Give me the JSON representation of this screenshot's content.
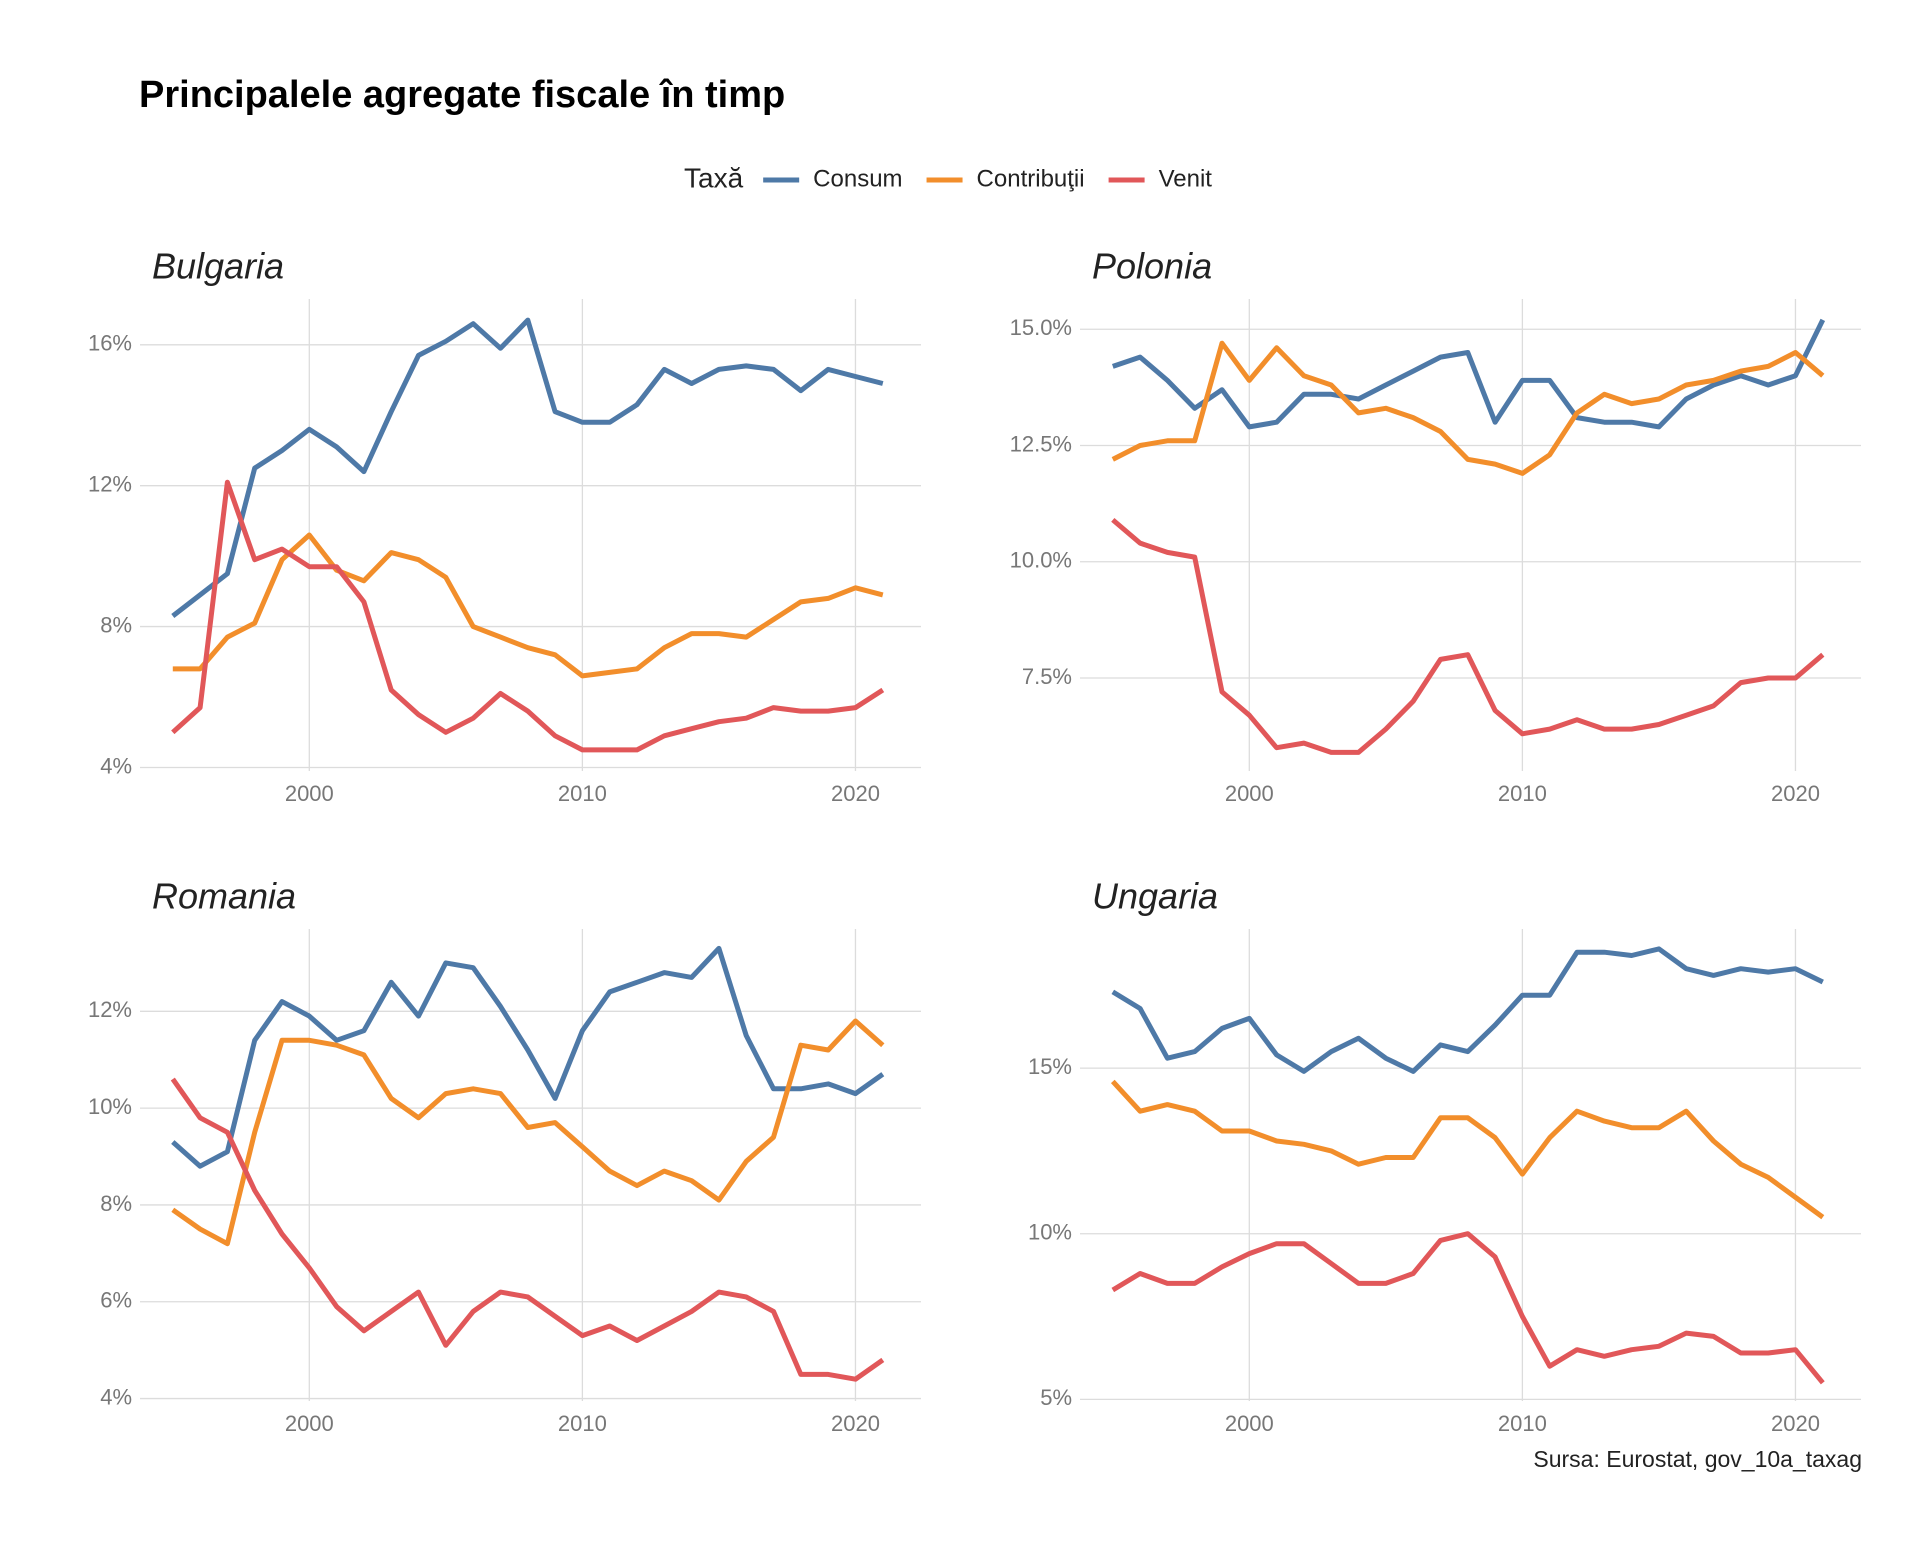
{
  "title": "Principalele agregate fiscale în timp",
  "legend_title": "Taxă",
  "caption": "Sursa: Eurostat, gov_10a_taxag",
  "chart_data": [
    {
      "type": "line",
      "title": "Bulgaria",
      "x": [
        1995,
        1996,
        1997,
        1998,
        1999,
        2000,
        2001,
        2002,
        2003,
        2004,
        2005,
        2006,
        2007,
        2008,
        2009,
        2010,
        2011,
        2012,
        2013,
        2014,
        2015,
        2016,
        2017,
        2018,
        2019,
        2020,
        2021
      ],
      "xlim": [
        1993.8,
        2022.4
      ],
      "xticks": [
        2000,
        2010,
        2020
      ],
      "ylim": [
        3.9,
        17.3
      ],
      "yticks": [
        {
          "value": 4,
          "label": "4%"
        },
        {
          "value": 8,
          "label": "8%"
        },
        {
          "value": 12,
          "label": "12%"
        },
        {
          "value": 16,
          "label": "16%"
        }
      ],
      "grid": true,
      "series": [
        {
          "name": "Consum",
          "color": "#4e79a7",
          "values": [
            8.3,
            8.9,
            9.5,
            12.5,
            13.0,
            13.6,
            13.1,
            12.4,
            14.1,
            15.7,
            16.1,
            16.6,
            15.9,
            16.7,
            14.1,
            13.8,
            13.8,
            14.3,
            15.3,
            14.9,
            15.3,
            15.4,
            15.3,
            14.7,
            15.3,
            15.1,
            14.9
          ]
        },
        {
          "name": "Contribuţii",
          "color": "#f28e2b",
          "values": [
            6.8,
            6.8,
            7.7,
            8.1,
            9.9,
            10.6,
            9.6,
            9.3,
            10.1,
            9.9,
            9.4,
            8.0,
            7.7,
            7.4,
            7.2,
            6.6,
            6.7,
            6.8,
            7.4,
            7.8,
            7.8,
            7.7,
            8.2,
            8.7,
            8.8,
            9.1,
            8.9
          ]
        },
        {
          "name": "Venit",
          "color": "#e15759",
          "values": [
            5.0,
            5.7,
            12.1,
            9.9,
            10.2,
            9.7,
            9.7,
            8.7,
            6.2,
            5.5,
            5.0,
            5.4,
            6.1,
            5.6,
            4.9,
            4.5,
            4.5,
            4.5,
            4.9,
            5.1,
            5.3,
            5.4,
            5.7,
            5.6,
            5.6,
            5.7,
            6.2
          ]
        }
      ]
    },
    {
      "type": "line",
      "title": "Polonia",
      "x": [
        1995,
        1996,
        1997,
        1998,
        1999,
        2000,
        2001,
        2002,
        2003,
        2004,
        2005,
        2006,
        2007,
        2008,
        2009,
        2010,
        2011,
        2012,
        2013,
        2014,
        2015,
        2016,
        2017,
        2018,
        2019,
        2020,
        2021
      ],
      "xlim": [
        1993.8,
        2022.4
      ],
      "xticks": [
        2000,
        2010,
        2020
      ],
      "ylim": [
        5.5,
        15.65
      ],
      "yticks": [
        {
          "value": 7.5,
          "label": "7.5%"
        },
        {
          "value": 10,
          "label": "10.0%"
        },
        {
          "value": 12.5,
          "label": "12.5%"
        },
        {
          "value": 15,
          "label": "15.0%"
        }
      ],
      "grid": true,
      "series": [
        {
          "name": "Consum",
          "color": "#4e79a7",
          "values": [
            14.2,
            14.4,
            13.9,
            13.3,
            13.7,
            12.9,
            13.0,
            13.6,
            13.6,
            13.5,
            13.8,
            14.1,
            14.4,
            14.5,
            13.0,
            13.9,
            13.9,
            13.1,
            13.0,
            13.0,
            12.9,
            13.5,
            13.8,
            14.0,
            13.8,
            14.0,
            15.2
          ]
        },
        {
          "name": "Contribuţii",
          "color": "#f28e2b",
          "values": [
            12.2,
            12.5,
            12.6,
            12.6,
            14.7,
            13.9,
            14.6,
            14.0,
            13.8,
            13.2,
            13.3,
            13.1,
            12.8,
            12.2,
            12.1,
            11.9,
            12.3,
            13.2,
            13.6,
            13.4,
            13.5,
            13.8,
            13.9,
            14.1,
            14.2,
            14.5,
            14.0
          ]
        },
        {
          "name": "Venit",
          "color": "#e15759",
          "values": [
            10.9,
            10.4,
            10.2,
            10.1,
            7.2,
            6.7,
            6.0,
            6.1,
            5.9,
            5.9,
            6.4,
            7.0,
            7.9,
            8.0,
            6.8,
            6.3,
            6.4,
            6.6,
            6.4,
            6.4,
            6.5,
            6.7,
            6.9,
            7.4,
            7.5,
            7.5,
            8.0
          ]
        }
      ]
    },
    {
      "type": "line",
      "title": "Romania",
      "x": [
        1995,
        1996,
        1997,
        1998,
        1999,
        2000,
        2001,
        2002,
        2003,
        2004,
        2005,
        2006,
        2007,
        2008,
        2009,
        2010,
        2011,
        2012,
        2013,
        2014,
        2015,
        2016,
        2017,
        2018,
        2019,
        2020,
        2021
      ],
      "xlim": [
        1993.8,
        2022.4
      ],
      "xticks": [
        2000,
        2010,
        2020
      ],
      "ylim": [
        3.95,
        13.7
      ],
      "yticks": [
        {
          "value": 4,
          "label": "4%"
        },
        {
          "value": 6,
          "label": "6%"
        },
        {
          "value": 8,
          "label": "8%"
        },
        {
          "value": 10,
          "label": "10%"
        },
        {
          "value": 12,
          "label": "12%"
        }
      ],
      "grid": true,
      "series": [
        {
          "name": "Consum",
          "color": "#4e79a7",
          "values": [
            9.3,
            8.8,
            9.1,
            11.4,
            12.2,
            11.9,
            11.4,
            11.6,
            12.6,
            11.9,
            13.0,
            12.9,
            12.1,
            11.2,
            10.2,
            11.6,
            12.4,
            12.6,
            12.8,
            12.7,
            13.3,
            11.5,
            10.4,
            10.4,
            10.5,
            10.3,
            10.7
          ]
        },
        {
          "name": "Contribuţii",
          "color": "#f28e2b",
          "values": [
            7.9,
            7.5,
            7.2,
            9.5,
            11.4,
            11.4,
            11.3,
            11.1,
            10.2,
            9.8,
            10.3,
            10.4,
            10.3,
            9.6,
            9.7,
            9.2,
            8.7,
            8.4,
            8.7,
            8.5,
            8.1,
            8.9,
            9.4,
            11.3,
            11.2,
            11.8,
            11.3
          ]
        },
        {
          "name": "Venit",
          "color": "#e15759",
          "values": [
            10.6,
            9.8,
            9.5,
            8.3,
            7.4,
            6.7,
            5.9,
            5.4,
            5.8,
            6.2,
            5.1,
            5.8,
            6.2,
            6.1,
            5.7,
            5.3,
            5.5,
            5.2,
            5.5,
            5.8,
            6.2,
            6.1,
            5.8,
            4.5,
            4.5,
            4.4,
            4.8
          ]
        }
      ]
    },
    {
      "type": "line",
      "title": "Ungaria",
      "x": [
        1995,
        1996,
        1997,
        1998,
        1999,
        2000,
        2001,
        2002,
        2003,
        2004,
        2005,
        2006,
        2007,
        2008,
        2009,
        2010,
        2011,
        2012,
        2013,
        2014,
        2015,
        2016,
        2017,
        2018,
        2019,
        2020,
        2021
      ],
      "xlim": [
        1993.8,
        2022.4
      ],
      "xticks": [
        2000,
        2010,
        2020
      ],
      "ylim": [
        4.95,
        19.2
      ],
      "yticks": [
        {
          "value": 5,
          "label": "5%"
        },
        {
          "value": 10,
          "label": "10%"
        },
        {
          "value": 15,
          "label": "15%"
        }
      ],
      "grid": true,
      "series": [
        {
          "name": "Consum",
          "color": "#4e79a7",
          "values": [
            17.3,
            16.8,
            15.3,
            15.5,
            16.2,
            16.5,
            15.4,
            14.9,
            15.5,
            15.9,
            15.3,
            14.9,
            15.7,
            15.5,
            16.3,
            17.2,
            17.2,
            18.5,
            18.5,
            18.4,
            18.6,
            18.0,
            17.8,
            18.0,
            17.9,
            18.0,
            17.6
          ]
        },
        {
          "name": "Contribuţii",
          "color": "#f28e2b",
          "values": [
            14.6,
            13.7,
            13.9,
            13.7,
            13.1,
            13.1,
            12.8,
            12.7,
            12.5,
            12.1,
            12.3,
            12.3,
            13.5,
            13.5,
            12.9,
            11.8,
            12.9,
            13.7,
            13.4,
            13.2,
            13.2,
            13.7,
            12.8,
            12.1,
            11.7,
            11.1,
            10.5
          ]
        },
        {
          "name": "Venit",
          "color": "#e15759",
          "values": [
            8.3,
            8.8,
            8.5,
            8.5,
            9.0,
            9.4,
            9.7,
            9.7,
            9.1,
            8.5,
            8.5,
            8.8,
            9.8,
            10.0,
            9.3,
            7.5,
            6.0,
            6.5,
            6.3,
            6.5,
            6.6,
            7.0,
            6.9,
            6.4,
            6.4,
            6.5,
            5.5
          ]
        }
      ]
    }
  ]
}
